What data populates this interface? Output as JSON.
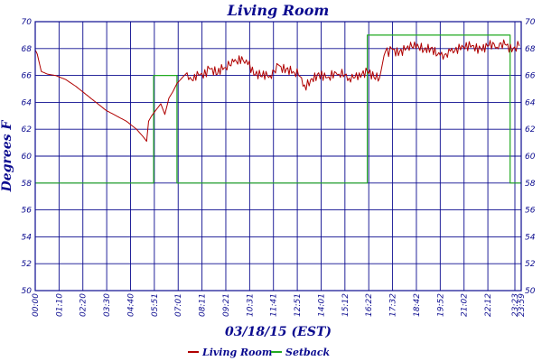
{
  "chart_data": {
    "type": "line",
    "title": "Living Room",
    "xlabel": "03/18/15 (EST)",
    "ylabel": "Degrees F",
    "ylim": [
      50,
      70
    ],
    "y_ticks": [
      50,
      52,
      54,
      56,
      58,
      60,
      62,
      64,
      66,
      68,
      70
    ],
    "x_range_hours": [
      0,
      24
    ],
    "x_ticks": [
      "00:00",
      "01:10",
      "02:20",
      "03:30",
      "04:40",
      "05:51",
      "07:01",
      "08:11",
      "09:21",
      "10:31",
      "11:41",
      "12:51",
      "14:01",
      "15:12",
      "16:22",
      "17:32",
      "18:42",
      "19:52",
      "21:02",
      "22:12",
      "23:23",
      "23:59"
    ],
    "grid": true,
    "legend_position": "bottom",
    "colors": {
      "living_room": "#b00000",
      "setback": "#22aa22",
      "grid": "#0b0b8f",
      "text": "#0b0b8f"
    },
    "series": [
      {
        "name": "Living Room",
        "x": [
          0,
          0.1,
          0.3,
          0.6,
          1,
          1.5,
          2,
          2.5,
          3,
          3.5,
          4,
          4.5,
          5,
          5.3,
          5.5,
          5.6,
          5.75,
          6,
          6.2,
          6.4,
          6.6,
          6.8,
          7,
          7.3,
          7.5,
          7.8,
          8,
          8.3,
          8.6,
          9,
          9.4,
          9.8,
          10.2,
          10.5,
          10.8,
          11.2,
          11.6,
          12,
          12.4,
          12.8,
          13,
          13.3,
          13.6,
          14,
          14.5,
          15,
          15.5,
          16,
          16.4,
          16.8,
          17,
          17.3,
          17.6,
          18,
          18.4,
          18.8,
          19.2,
          19.6,
          20,
          20.5,
          21,
          21.5,
          22,
          22.4,
          22.8,
          23.2,
          23.6,
          23.9
        ],
        "values": [
          67.9,
          67.6,
          66.3,
          66.1,
          66.0,
          65.7,
          65.2,
          64.6,
          64.0,
          63.4,
          63.0,
          62.6,
          62.0,
          61.5,
          61.1,
          62.6,
          63.0,
          63.5,
          63.9,
          63.1,
          64.3,
          64.8,
          65.4,
          65.9,
          66.2,
          65.6,
          66.3,
          65.8,
          66.5,
          66.1,
          66.6,
          67.0,
          67.4,
          66.8,
          66.0,
          65.9,
          66.0,
          66.8,
          66.5,
          66.2,
          66.0,
          65.3,
          65.7,
          66.2,
          65.9,
          66.1,
          65.8,
          66.2,
          66.3,
          65.7,
          65.8,
          67.8,
          68.0,
          67.8,
          68.2,
          68.0,
          67.9,
          68.1,
          67.5,
          67.8,
          67.9,
          68.1,
          68.0,
          68.2,
          68.1,
          68.3,
          68.0,
          68.2
        ]
      },
      {
        "name": "Setback",
        "x": [
          0,
          5.85,
          5.85,
          7.0,
          7.0,
          16.4,
          16.4,
          23.45,
          23.45,
          24
        ],
        "values": [
          58,
          58,
          66,
          66,
          58,
          58,
          69,
          69,
          58,
          58
        ]
      }
    ]
  }
}
